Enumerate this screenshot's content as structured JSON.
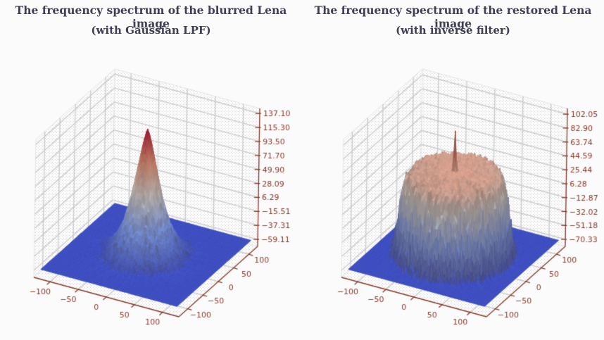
{
  "page": {
    "background": "#fbfbfb"
  },
  "style": {
    "title_color": "#3f3e55",
    "axis_color": "#863a2b",
    "tick_label_color": "#863a2b",
    "grid_color": "#cccccc",
    "pane_color": "#fdfdfd",
    "stipple_color": "#cdcdcd",
    "colormap_name": "coolwarm",
    "colormap_stops": [
      "#3b4cc0",
      "#7c9ff9",
      "#dcdcda",
      "#f49a7b",
      "#b40426"
    ],
    "surface_floor_color": "#3b4cc0"
  },
  "chart_data": [
    {
      "type": "surface",
      "title_line1": "The frequency spectrum of the blurred Lena image",
      "title_line2": "(with Gaussian LPF)",
      "x_tick_labels": [
        "−100",
        "−50",
        "0",
        "50",
        "100"
      ],
      "x_tick_values": [
        -100,
        -50,
        0,
        50,
        100
      ],
      "y_tick_labels": [
        "−100",
        "−50",
        "0",
        "50",
        "100"
      ],
      "y_tick_values": [
        -100,
        -50,
        0,
        50,
        100
      ],
      "z_tick_labels": [
        "137.10",
        "115.30",
        "93.50",
        "71.70",
        "49.90",
        "28.09",
        "6.29",
        "−15.51",
        "−37.31",
        "−59.11"
      ],
      "z_tick_values": [
        137.1,
        115.3,
        93.5,
        71.7,
        49.9,
        28.09,
        6.29,
        -15.51,
        -37.31,
        -59.11
      ],
      "xlim": [
        -129,
        129
      ],
      "ylim": [
        -129,
        129
      ],
      "zlim": [
        -70,
        145
      ],
      "z_data_range": [
        -59.11,
        137.1
      ],
      "grid": true,
      "surface": {
        "kind": "cone",
        "peak": 137.1,
        "clip": -59.11,
        "decay_radius": 30,
        "decay_power": 1.4,
        "noise": 5.5,
        "seed": 7
      }
    },
    {
      "type": "surface",
      "title_line1": "The frequency spectrum of the restored Lena image",
      "title_line2": "(with inverse filter)",
      "x_tick_labels": [
        "−100",
        "−50",
        "0",
        "50",
        "100"
      ],
      "x_tick_values": [
        -100,
        -50,
        0,
        50,
        100
      ],
      "y_tick_labels": [
        "−100",
        "−50",
        "0",
        "50",
        "100"
      ],
      "y_tick_values": [
        -100,
        -50,
        0,
        50,
        100
      ],
      "z_tick_labels": [
        "102.05",
        "82.90",
        "63.74",
        "44.59",
        "25.44",
        "6.28",
        "−12.87",
        "−32.02",
        "−51.18",
        "−70.33"
      ],
      "z_tick_values": [
        102.05,
        82.9,
        63.74,
        44.59,
        25.44,
        6.28,
        -12.87,
        -32.02,
        -51.18,
        -70.33
      ],
      "xlim": [
        -129,
        129
      ],
      "ylim": [
        -129,
        129
      ],
      "zlim": [
        -80,
        110
      ],
      "z_data_range": [
        -70.33,
        102.05
      ],
      "grid": true,
      "surface": {
        "kind": "mesa",
        "peak": 102.05,
        "clip": -70.33,
        "top": 46,
        "rim_radius": 88,
        "rim_softness": 4.5,
        "spike": 56,
        "noise": 6,
        "seed": 13
      }
    }
  ]
}
